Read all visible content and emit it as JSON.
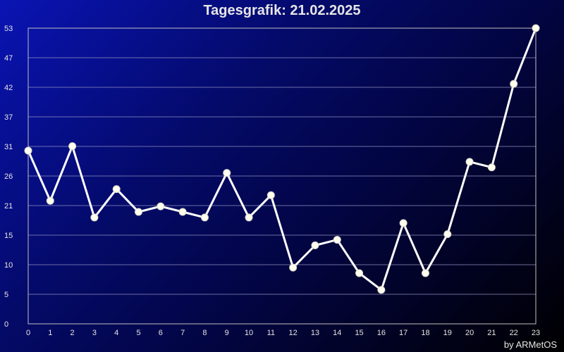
{
  "credit": "by ARMetOS",
  "chart_data": {
    "type": "line",
    "title": "Tagesgrafik: 21.02.2025",
    "xlabel": "",
    "ylabel": "",
    "x": [
      0,
      1,
      2,
      3,
      4,
      5,
      6,
      7,
      8,
      9,
      10,
      11,
      12,
      13,
      14,
      15,
      16,
      17,
      18,
      19,
      20,
      21,
      22,
      23
    ],
    "values": [
      31.1,
      22.1,
      31.9,
      19.1,
      24.2,
      20.1,
      21.1,
      20.1,
      19.1,
      27.1,
      19.1,
      23.1,
      10.1,
      14.1,
      15.1,
      9.1,
      6.1,
      18.1,
      9.1,
      16.1,
      29.1,
      28.1,
      43.1,
      53.1
    ],
    "y_ticks": [
      "0",
      "5",
      "10",
      "15",
      "21",
      "26",
      "31",
      "37",
      "42",
      "47",
      "53"
    ],
    "x_ticks": [
      "0",
      "1",
      "2",
      "3",
      "4",
      "5",
      "6",
      "7",
      "8",
      "9",
      "10",
      "11",
      "12",
      "13",
      "14",
      "15",
      "16",
      "17",
      "18",
      "19",
      "20",
      "21",
      "22",
      "23"
    ],
    "xlim": [
      0,
      23
    ],
    "ylim": [
      0,
      53.1
    ],
    "grid": true,
    "colors": {
      "line": "#ffffff",
      "marker": "#fffff0",
      "grid": "#9090c0",
      "axis": "#c0c0c0",
      "text": "#e6e6e6"
    }
  }
}
